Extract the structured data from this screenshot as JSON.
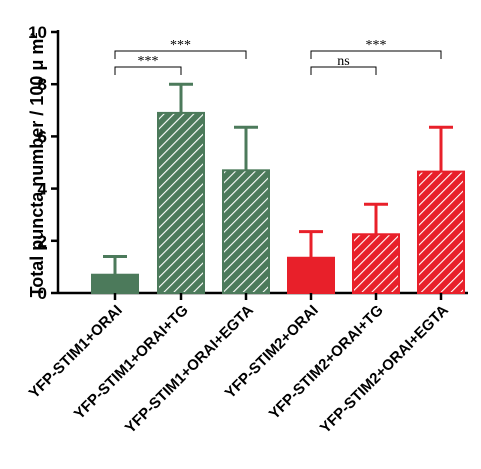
{
  "chart_data": {
    "type": "bar",
    "title": "",
    "xlabel": "",
    "ylabel": "Total puncta number / 100 μ m²",
    "ylim": [
      0,
      10
    ],
    "yticks": [
      0,
      2,
      4,
      6,
      8,
      10
    ],
    "grid": false,
    "categories": [
      "YFP-STIM1+ORAI",
      "YFP-STIM1+ORAI+TG",
      "YFP-STIM1+ORAI+EGTA",
      "YFP-STIM2+ORAI",
      "YFP-STIM2+ORAI+TG",
      "YFP-STIM2+ORAI+EGTA"
    ],
    "values": [
      0.7,
      6.9,
      4.7,
      1.35,
      2.25,
      4.65
    ],
    "error_upper": [
      1.4,
      8.0,
      6.35,
      2.35,
      3.4,
      6.35
    ],
    "colors": [
      "#4c7a5b",
      "#4c7a5b",
      "#4c7a5b",
      "#e8202a",
      "#e8202a",
      "#e8202a"
    ],
    "fill": [
      "solid",
      "hatched",
      "hatched",
      "solid",
      "hatched",
      "hatched"
    ],
    "significance": [
      {
        "from": 0,
        "to": 1,
        "label": "***"
      },
      {
        "from": 0,
        "to": 2,
        "label": "***"
      },
      {
        "from": 3,
        "to": 4,
        "label": "ns"
      },
      {
        "from": 3,
        "to": 5,
        "label": "***"
      }
    ]
  }
}
